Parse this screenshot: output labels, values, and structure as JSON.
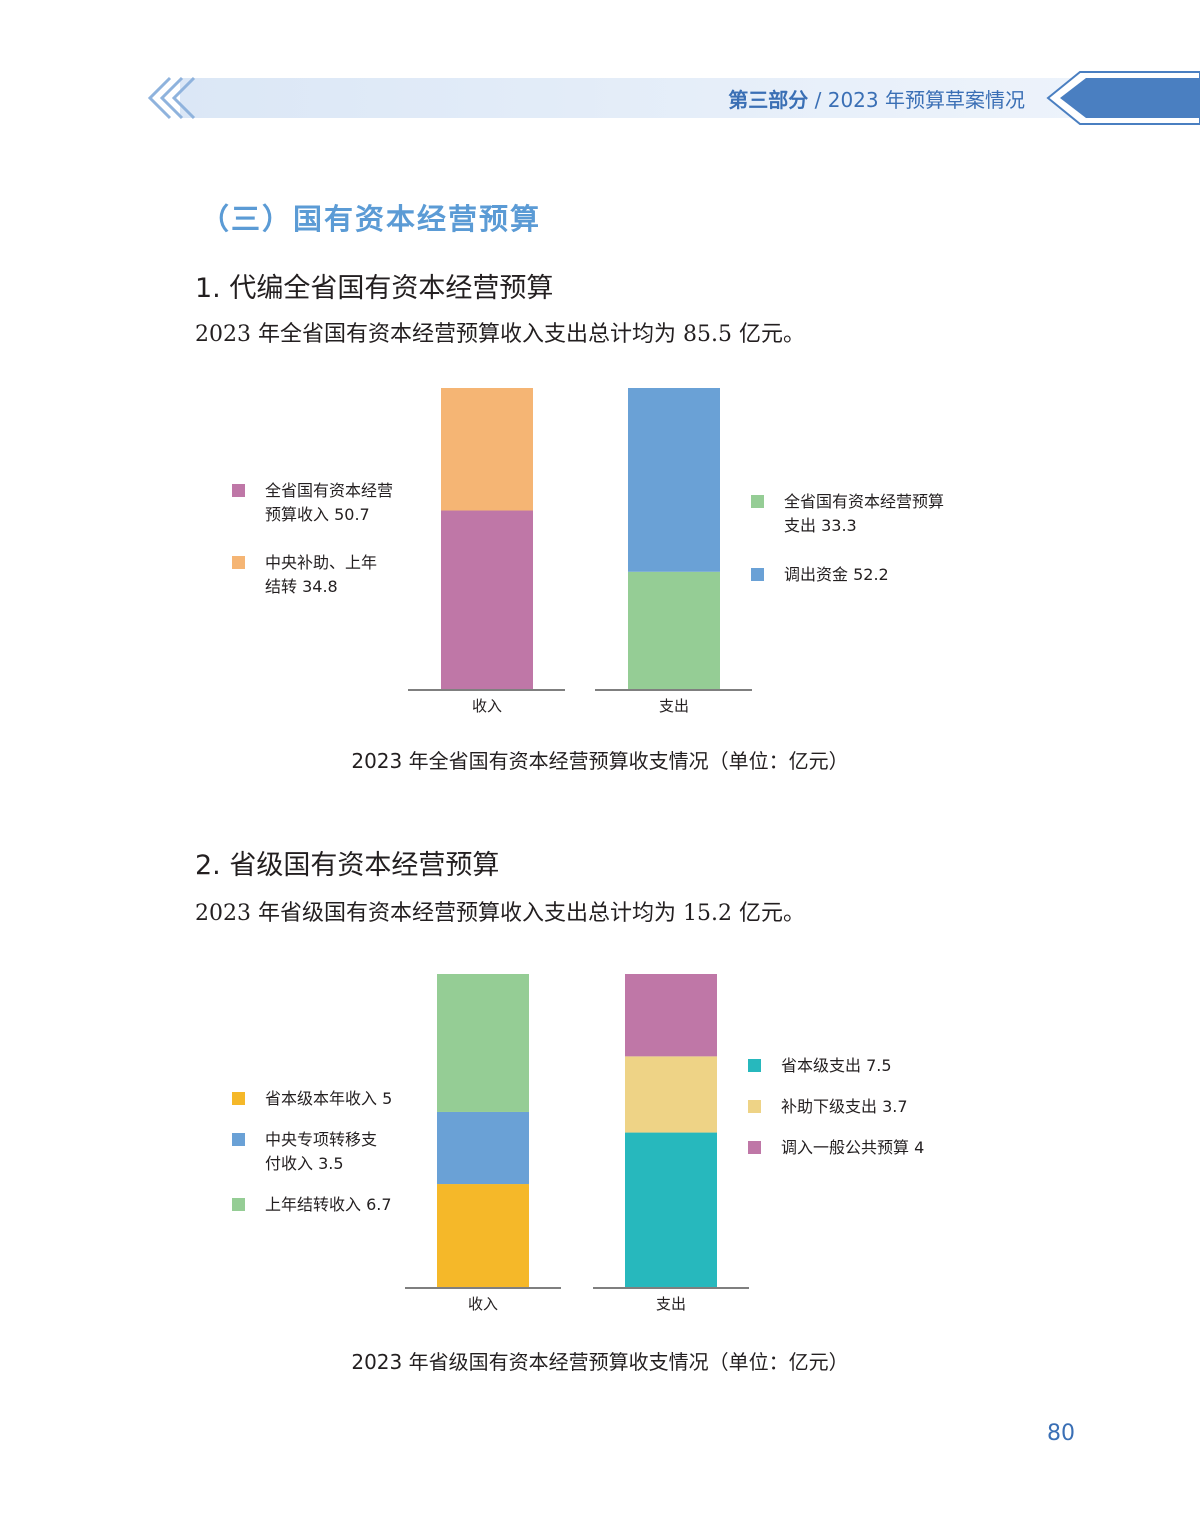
{
  "header": {
    "part": "第三部分",
    "separator": " / ",
    "title": "2023 年预算草案情况"
  },
  "section_title": "（三）国有资本经营预算",
  "subsections": [
    {
      "heading": "1. 代编全省国有资本经营预算",
      "text": "2023 年全省国有资本经营预算收入支出总计均为 85.5 亿元。",
      "caption": "2023 年全省国有资本经营预算收支情况（单位：亿元）"
    },
    {
      "heading": "2. 省级国有资本经营预算",
      "text": "2023 年省级国有资本经营预算收入支出总计均为 15.2 亿元。",
      "caption": "2023 年省级国有资本经营预算收支情况（单位：亿元）"
    }
  ],
  "chart_data": [
    {
      "type": "bar",
      "stacked": true,
      "categories": [
        "收入",
        "支出"
      ],
      "unit": "亿元",
      "total": 85.5,
      "series": [
        {
          "category": "收入",
          "segments": [
            {
              "name": "全省国有资本经营预算收入",
              "value": 50.7,
              "label": [
                "全省国有资本经营",
                "预算收入 50.7"
              ],
              "color": "#bf77a7"
            },
            {
              "name": "中央补助、上年结转",
              "value": 34.8,
              "label": [
                "中央补助、上年",
                "结转 34.8"
              ],
              "color": "#f5b574"
            }
          ]
        },
        {
          "category": "支出",
          "segments": [
            {
              "name": "全省国有资本经营预算支出",
              "value": 33.3,
              "label": [
                "全省国有资本经营预算",
                "支出 33.3"
              ],
              "color": "#95cd95"
            },
            {
              "name": "调出资金",
              "value": 52.2,
              "label": [
                "调出资金 52.2"
              ],
              "color": "#6aa1d6"
            }
          ]
        }
      ]
    },
    {
      "type": "bar",
      "stacked": true,
      "categories": [
        "收入",
        "支出"
      ],
      "unit": "亿元",
      "total": 15.2,
      "series": [
        {
          "category": "收入",
          "segments": [
            {
              "name": "省本级本年收入",
              "value": 5,
              "label": [
                "省本级本年收入 5"
              ],
              "color": "#f5b829"
            },
            {
              "name": "中央专项转移支付收入",
              "value": 3.5,
              "label": [
                "中央专项转移支",
                "付收入 3.5"
              ],
              "color": "#6aa1d6"
            },
            {
              "name": "上年结转收入",
              "value": 6.7,
              "label": [
                "上年结转收入 6.7"
              ],
              "color": "#95cd95"
            }
          ]
        },
        {
          "category": "支出",
          "segments": [
            {
              "name": "省本级支出",
              "value": 7.5,
              "label": [
                "省本级支出 7.5"
              ],
              "color": "#27b8bd"
            },
            {
              "name": "补助下级支出",
              "value": 3.7,
              "label": [
                "补助下级支出 3.7"
              ],
              "color": "#eed386"
            },
            {
              "name": "调入一般公共预算",
              "value": 4,
              "label": [
                "调入一般公共预算 4"
              ],
              "color": "#bf77a7"
            }
          ]
        }
      ]
    }
  ],
  "page_number": "80",
  "colors": {
    "header_band": "#e6effa",
    "header_accent": "#4a7fc1",
    "section_title": "#5b9bd5"
  }
}
